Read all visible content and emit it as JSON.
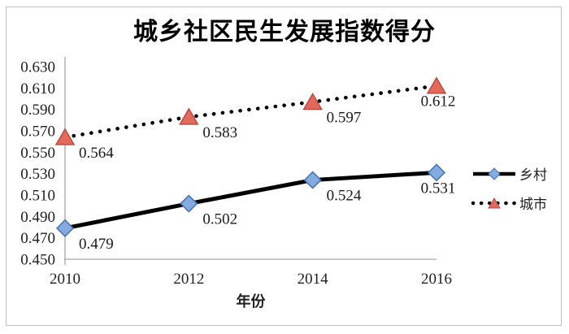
{
  "chart_data": {
    "type": "line",
    "title": "城乡社区民生发展指数得分",
    "xlabel": "年份",
    "ylabel": "",
    "categories": [
      "2010",
      "2012",
      "2014",
      "2016"
    ],
    "series": [
      {
        "name": "乡村",
        "values": [
          0.479,
          0.502,
          0.524,
          0.531
        ],
        "line": "solid",
        "line_color": "#000000",
        "marker": "diamond",
        "marker_fill": "#84ABE0",
        "marker_stroke": "#4472B4"
      },
      {
        "name": "城市",
        "values": [
          0.564,
          0.583,
          0.597,
          0.612
        ],
        "line": "dotted",
        "line_color": "#000000",
        "marker": "triangle",
        "marker_fill": "#E2695B",
        "marker_stroke": "#B94B40"
      }
    ],
    "ylim": [
      0.45,
      0.63
    ],
    "y_tick_step": 0.02,
    "y_tick_labels": [
      "0.450",
      "0.470",
      "0.490",
      "0.510",
      "0.530",
      "0.550",
      "0.570",
      "0.590",
      "0.610",
      "0.630"
    ],
    "grid": false,
    "legend_position": "right",
    "axis_color": "#A6A6A6",
    "label_color": "#1f1f1f"
  }
}
